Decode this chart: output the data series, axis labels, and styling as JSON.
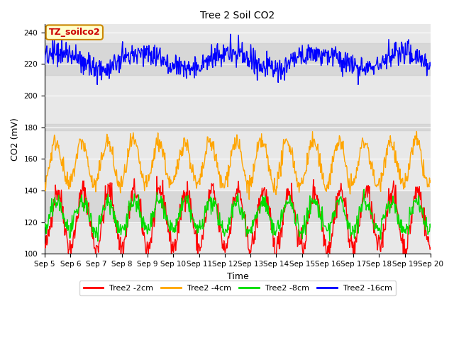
{
  "title": "Tree 2 Soil CO2",
  "xlabel": "Time",
  "ylabel": "CO2 (mV)",
  "ylim": [
    100,
    245
  ],
  "yticks": [
    100,
    120,
    140,
    160,
    180,
    200,
    220,
    240
  ],
  "xtick_labels": [
    "Sep 5",
    "Sep 6",
    "Sep 7",
    "Sep 8",
    "Sep 9",
    "Sep 10",
    "Sep 11",
    "Sep 12",
    "Sep 13",
    "Sep 14",
    "Sep 15",
    "Sep 16",
    "Sep 17",
    "Sep 18",
    "Sep 19",
    "Sep 20"
  ],
  "series_colors": {
    "2cm": "#ff0000",
    "4cm": "#ffa500",
    "8cm": "#00dd00",
    "16cm": "#0000ff"
  },
  "legend_labels": [
    "Tree2 -2cm",
    "Tree2 -4cm",
    "Tree2 -8cm",
    "Tree2 -16cm"
  ],
  "legend_colors": [
    "#ff0000",
    "#ffa500",
    "#00dd00",
    "#0000ff"
  ],
  "timezone_label": "TZ_soilco2",
  "timezone_label_color": "#cc0000",
  "timezone_box_edge": "#cc8800",
  "timezone_box_face": "#ffffcc",
  "plot_bg_color": "#e8e8e8",
  "fig_bg_color": "#ffffff",
  "n_days": 15,
  "seed": 42,
  "line_width": 1.0,
  "title_fontsize": 10,
  "axis_label_fontsize": 9,
  "tick_fontsize": 7.5,
  "legend_fontsize": 8
}
